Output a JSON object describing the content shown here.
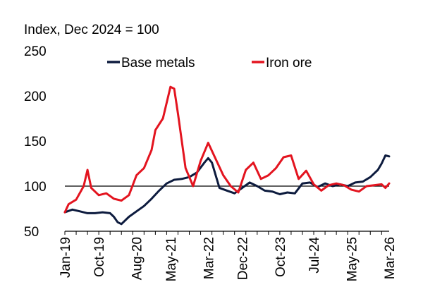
{
  "chart_data": {
    "type": "line",
    "unit_label": "Index, Dec 2024 = 100",
    "title": "",
    "xlabel": "",
    "ylabel": "",
    "ylim": [
      50,
      250
    ],
    "yticks": [
      "250",
      "200",
      "150",
      "100",
      "50"
    ],
    "xticks": [
      "Jan-19",
      "Oct-19",
      "Aug-20",
      "May-21",
      "Mar-22",
      "Dec-22",
      "Oct-23",
      "Jul-24",
      "May-25",
      "Mar-26"
    ],
    "reference_line": 100,
    "grid": false,
    "legend_position": "top",
    "series": [
      {
        "name": "Base metals",
        "color": "#0d1b3e",
        "points": [
          [
            "2019-01",
            71
          ],
          [
            "2019-03",
            74
          ],
          [
            "2019-05",
            72
          ],
          [
            "2019-07",
            70
          ],
          [
            "2019-09",
            70
          ],
          [
            "2019-11",
            71
          ],
          [
            "2020-01",
            70
          ],
          [
            "2020-02",
            66
          ],
          [
            "2020-03",
            60
          ],
          [
            "2020-04",
            58
          ],
          [
            "2020-06",
            66
          ],
          [
            "2020-08",
            72
          ],
          [
            "2020-10",
            78
          ],
          [
            "2020-12",
            86
          ],
          [
            "2021-02",
            95
          ],
          [
            "2021-04",
            103
          ],
          [
            "2021-06",
            107
          ],
          [
            "2021-08",
            108
          ],
          [
            "2021-10",
            110
          ],
          [
            "2021-12",
            115
          ],
          [
            "2022-02",
            126
          ],
          [
            "2022-03",
            131
          ],
          [
            "2022-04",
            126
          ],
          [
            "2022-06",
            98
          ],
          [
            "2022-08",
            95
          ],
          [
            "2022-10",
            92
          ],
          [
            "2022-12",
            98
          ],
          [
            "2023-02",
            104
          ],
          [
            "2023-04",
            100
          ],
          [
            "2023-06",
            95
          ],
          [
            "2023-08",
            94
          ],
          [
            "2023-10",
            91
          ],
          [
            "2023-12",
            93
          ],
          [
            "2024-02",
            92
          ],
          [
            "2024-04",
            103
          ],
          [
            "2024-06",
            104
          ],
          [
            "2024-08",
            99
          ],
          [
            "2024-10",
            103
          ],
          [
            "2024-12",
            100
          ],
          [
            "2025-02",
            102
          ],
          [
            "2025-04",
            100
          ],
          [
            "2025-06",
            104
          ],
          [
            "2025-08",
            105
          ],
          [
            "2025-10",
            110
          ],
          [
            "2025-12",
            118
          ],
          [
            "2026-01",
            125
          ],
          [
            "2026-02",
            134
          ],
          [
            "2026-03",
            133
          ]
        ]
      },
      {
        "name": "Iron ore",
        "color": "#e3141f",
        "points": [
          [
            "2019-01",
            71
          ],
          [
            "2019-02",
            80
          ],
          [
            "2019-04",
            85
          ],
          [
            "2019-06",
            100
          ],
          [
            "2019-07",
            118
          ],
          [
            "2019-08",
            98
          ],
          [
            "2019-10",
            90
          ],
          [
            "2019-12",
            92
          ],
          [
            "2020-02",
            86
          ],
          [
            "2020-04",
            84
          ],
          [
            "2020-06",
            90
          ],
          [
            "2020-08",
            112
          ],
          [
            "2020-10",
            120
          ],
          [
            "2020-12",
            140
          ],
          [
            "2021-01",
            162
          ],
          [
            "2021-03",
            175
          ],
          [
            "2021-05",
            210
          ],
          [
            "2021-06",
            208
          ],
          [
            "2021-07",
            180
          ],
          [
            "2021-09",
            120
          ],
          [
            "2021-11",
            100
          ],
          [
            "2022-01",
            128
          ],
          [
            "2022-03",
            148
          ],
          [
            "2022-05",
            130
          ],
          [
            "2022-07",
            112
          ],
          [
            "2022-09",
            100
          ],
          [
            "2022-11",
            93
          ],
          [
            "2023-01",
            118
          ],
          [
            "2023-03",
            126
          ],
          [
            "2023-05",
            108
          ],
          [
            "2023-07",
            112
          ],
          [
            "2023-09",
            120
          ],
          [
            "2023-11",
            132
          ],
          [
            "2024-01",
            134
          ],
          [
            "2024-03",
            108
          ],
          [
            "2024-05",
            117
          ],
          [
            "2024-07",
            102
          ],
          [
            "2024-09",
            95
          ],
          [
            "2024-11",
            101
          ],
          [
            "2025-01",
            103
          ],
          [
            "2025-03",
            101
          ],
          [
            "2025-05",
            96
          ],
          [
            "2025-07",
            94
          ],
          [
            "2025-09",
            100
          ],
          [
            "2025-11",
            101
          ],
          [
            "2026-01",
            102
          ],
          [
            "2026-02",
            98
          ],
          [
            "2026-03",
            103
          ]
        ]
      }
    ]
  }
}
